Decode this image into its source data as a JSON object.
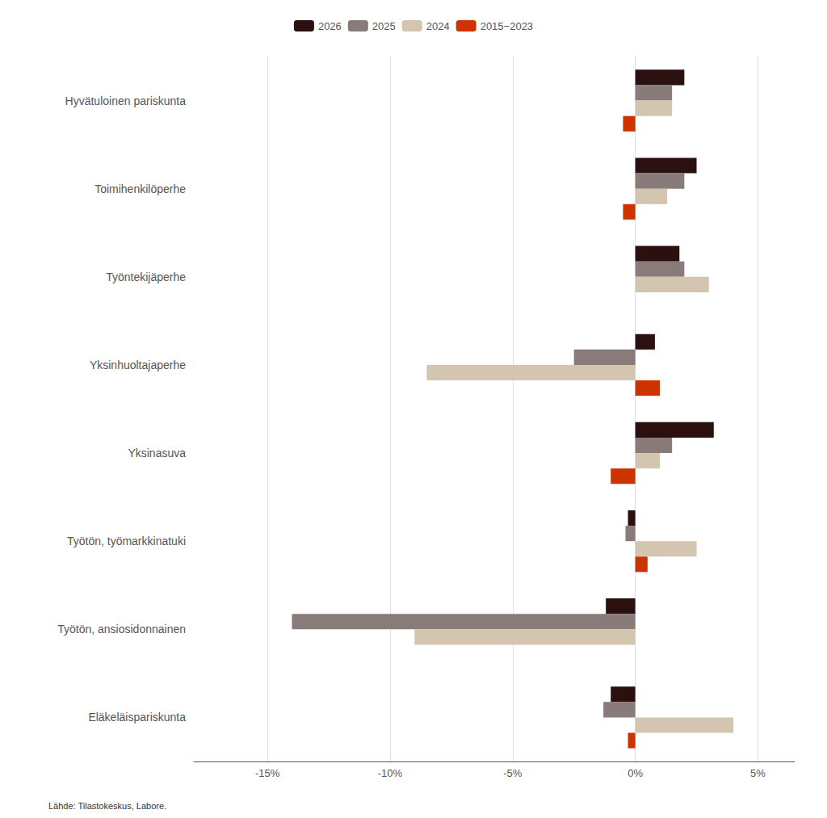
{
  "chart_data": {
    "type": "bar",
    "orientation": "horizontal",
    "categories": [
      "Hyvätuloinen pariskunta",
      "Toimihenkilöperhe",
      "Työntekijäperhe",
      "Yksinhuoltajaperhe",
      "Yksinasuva",
      "Työtön, työmarkkinatuki",
      "Työtön, ansiosidonnainen",
      "Eläkeläispariskunta"
    ],
    "series": [
      {
        "name": "2026",
        "color": "#2b1010",
        "values": [
          2.0,
          2.5,
          1.8,
          0.8,
          3.2,
          -0.3,
          -1.2,
          -1.0
        ]
      },
      {
        "name": "2025",
        "color": "#8a7b7b",
        "values": [
          1.5,
          2.0,
          2.0,
          -2.5,
          1.5,
          -0.4,
          -14.0,
          -1.3
        ]
      },
      {
        "name": "2024",
        "color": "#d4c5b0",
        "values": [
          1.5,
          1.3,
          3.0,
          -8.5,
          1.0,
          2.5,
          -9.0,
          4.0
        ]
      },
      {
        "name": "2015−2023",
        "color": "#cc3300",
        "values": [
          -0.5,
          -0.5,
          0.0,
          1.0,
          -1.0,
          0.5,
          0.0,
          -0.3
        ]
      }
    ],
    "xlim": [
      -18,
      6.5
    ],
    "xticks": [
      {
        "value": -15,
        "label": "-15%"
      },
      {
        "value": -10,
        "label": "-10%"
      },
      {
        "value": -5,
        "label": "-5%"
      },
      {
        "value": 0,
        "label": "0%"
      },
      {
        "value": 5,
        "label": "5%"
      }
    ],
    "grid": true,
    "legend": "top",
    "annotations": [
      "Lähde: Tilastokeskus, Labore."
    ]
  }
}
